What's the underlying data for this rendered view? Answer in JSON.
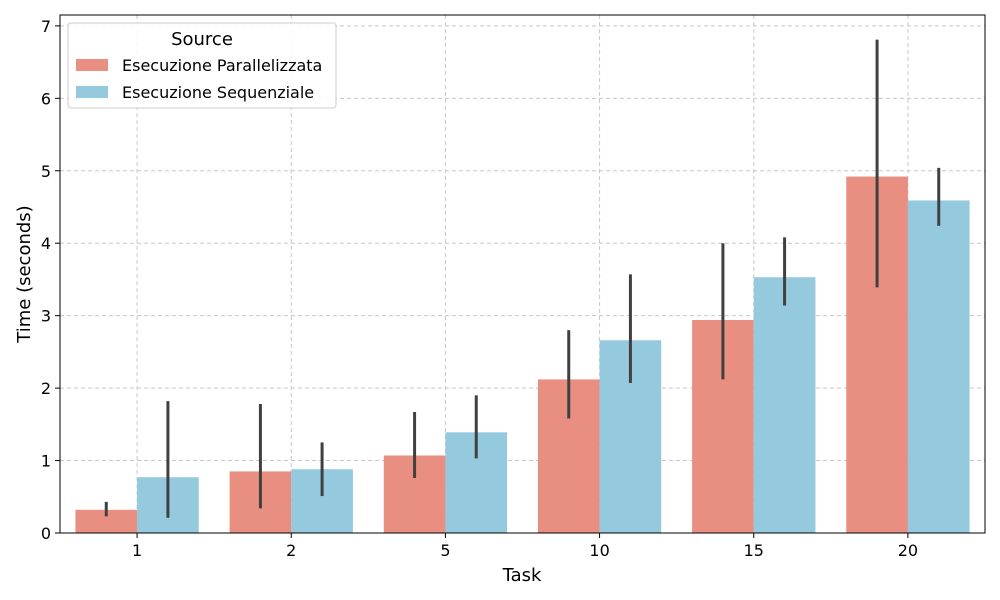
{
  "chart_data": {
    "type": "bar",
    "title": "",
    "xlabel": "Task",
    "ylabel": "Time (seconds)",
    "categories": [
      "1",
      "2",
      "5",
      "10",
      "15",
      "20"
    ],
    "ylim": [
      0,
      7.15
    ],
    "yticks": [
      0,
      1,
      2,
      3,
      4,
      5,
      6,
      7
    ],
    "grid": true,
    "legend": {
      "title": "Source",
      "placement": "top-left"
    },
    "series": [
      {
        "name": "Esecuzione Parallelizzata",
        "color": "#e88f82",
        "values": [
          0.32,
          0.85,
          1.07,
          2.12,
          2.94,
          4.92
        ],
        "error_low": [
          0.23,
          0.34,
          0.76,
          1.58,
          2.12,
          3.39
        ],
        "error_high": [
          0.43,
          1.78,
          1.67,
          2.8,
          4.0,
          6.81
        ]
      },
      {
        "name": "Esecuzione Sequenziale",
        "color": "#95c9de",
        "values": [
          0.77,
          0.88,
          1.39,
          2.66,
          3.53,
          4.59
        ],
        "error_low": [
          0.21,
          0.51,
          1.03,
          2.07,
          3.14,
          4.24
        ],
        "error_high": [
          1.82,
          1.25,
          1.9,
          3.57,
          4.08,
          5.04
        ]
      }
    ]
  }
}
